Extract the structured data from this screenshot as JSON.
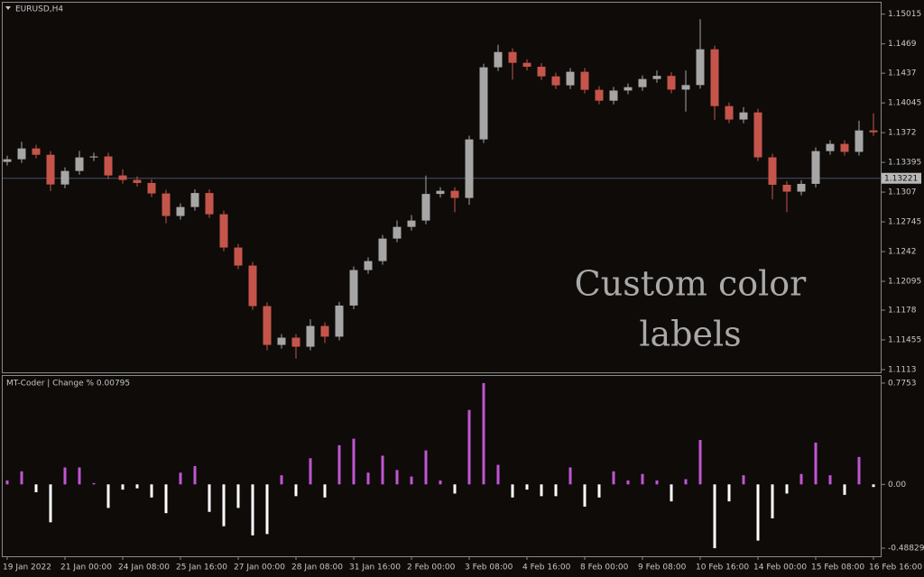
{
  "chart_data": [
    {
      "type": "candlestick",
      "title": "EURUSD,H4",
      "open": [
        1.134,
        1.13429,
        1.13547,
        1.13478,
        1.13153,
        1.13301,
        1.13449,
        1.1346,
        1.13252,
        1.13203,
        1.1317,
        1.13055,
        1.12809,
        1.12907,
        1.1306,
        1.12828,
        1.12464,
        1.12267,
        1.11824,
        1.114,
        1.11479,
        1.1138,
        1.11607,
        1.1149,
        1.1183,
        1.12218,
        1.12316,
        1.12562,
        1.1269,
        1.12759,
        1.1305,
        1.13084,
        1.13006,
        1.13646,
        1.14434,
        1.14601,
        1.14483,
        1.1444,
        1.14335,
        1.14237,
        1.14385,
        1.14188,
        1.14069,
        1.1418,
        1.14217,
        1.14306,
        1.1434,
        1.1419,
        1.1424,
        1.14631,
        1.1401,
        1.13863,
        1.13941,
        1.1345,
        1.1315,
        1.13075,
        1.1316,
        1.13518,
        1.13597,
        1.1351,
        1.13744
      ],
      "high": [
        1.13469,
        1.1362,
        1.13587,
        1.13518,
        1.13341,
        1.1352,
        1.135,
        1.135,
        1.1332,
        1.13243,
        1.1321,
        1.13095,
        1.12947,
        1.131,
        1.131,
        1.12868,
        1.12504,
        1.12307,
        1.11864,
        1.11519,
        1.11519,
        1.1168,
        1.11647,
        1.1187,
        1.12258,
        1.12356,
        1.12602,
        1.1276,
        1.1282,
        1.1325,
        1.13124,
        1.13124,
        1.13686,
        1.14474,
        1.1468,
        1.14641,
        1.14523,
        1.1448,
        1.14375,
        1.14425,
        1.14425,
        1.14228,
        1.1422,
        1.14257,
        1.14346,
        1.144,
        1.1438,
        1.144,
        1.1496,
        1.14671,
        1.1405,
        1.14,
        1.13981,
        1.1349,
        1.1319,
        1.132,
        1.13558,
        1.13637,
        1.13637,
        1.1385,
        1.1393
      ],
      "low": [
        1.1336,
        1.13389,
        1.13438,
        1.1308,
        1.13113,
        1.13261,
        1.13409,
        1.13212,
        1.13163,
        1.1313,
        1.13015,
        1.1273,
        1.12769,
        1.12867,
        1.12788,
        1.12424,
        1.12227,
        1.11784,
        1.1134,
        1.1136,
        1.1125,
        1.1134,
        1.1142,
        1.1145,
        1.1179,
        1.12178,
        1.12276,
        1.12522,
        1.1265,
        1.12719,
        1.1301,
        1.1285,
        1.1293,
        1.13606,
        1.14394,
        1.143,
        1.144,
        1.14295,
        1.14197,
        1.14197,
        1.14148,
        1.14029,
        1.14029,
        1.1414,
        1.14177,
        1.14266,
        1.1415,
        1.1395,
        1.142,
        1.1386,
        1.13823,
        1.13823,
        1.1341,
        1.1299,
        1.1285,
        1.13035,
        1.1312,
        1.13478,
        1.1347,
        1.1347,
        1.13684
      ],
      "close": [
        1.13429,
        1.13547,
        1.13478,
        1.13153,
        1.13301,
        1.13449,
        1.1346,
        1.13252,
        1.13203,
        1.1317,
        1.13055,
        1.12809,
        1.12907,
        1.1306,
        1.12828,
        1.12464,
        1.12267,
        1.11824,
        1.114,
        1.11479,
        1.1138,
        1.11607,
        1.1149,
        1.1183,
        1.12218,
        1.12316,
        1.12562,
        1.1269,
        1.12759,
        1.1305,
        1.13084,
        1.13006,
        1.13646,
        1.14434,
        1.14601,
        1.14483,
        1.1444,
        1.14335,
        1.14237,
        1.14385,
        1.14188,
        1.14069,
        1.1418,
        1.14217,
        1.14306,
        1.1434,
        1.1419,
        1.1424,
        1.14631,
        1.1401,
        1.13863,
        1.13941,
        1.1345,
        1.1315,
        1.13075,
        1.1316,
        1.13518,
        1.13597,
        1.1351,
        1.13744,
        1.13724
      ],
      "up_color": "#a6a6a6",
      "down_color": "#c5554a",
      "ylim": [
        1.111,
        1.1514
      ],
      "yticks": [
        1.15015,
        1.1469,
        1.1437,
        1.14045,
        1.1372,
        1.13395,
        1.1307,
        1.12745,
        1.1242,
        1.12095,
        1.1178,
        1.11455,
        1.1113
      ],
      "price_line": 1.13221,
      "annotation": [
        "Custom color",
        "labels"
      ]
    },
    {
      "type": "bar",
      "title": "MT-Coder | Change % 0.00795",
      "categories": [
        "19 Jan 2022",
        null,
        null,
        null,
        "21 Jan 00:00",
        null,
        null,
        null,
        "24 Jan 08:00",
        null,
        null,
        null,
        "25 Jan 16:00",
        null,
        null,
        null,
        "27 Jan 00:00",
        null,
        null,
        null,
        "28 Jan 08:00",
        null,
        null,
        null,
        "31 Jan 16:00",
        null,
        null,
        null,
        "2 Feb 00:00",
        null,
        null,
        null,
        "3 Feb 08:00",
        null,
        null,
        null,
        "4 Feb 16:00",
        null,
        null,
        null,
        "8 Feb 00:00",
        null,
        null,
        null,
        "9 Feb 08:00",
        null,
        null,
        null,
        "10 Feb 16:00",
        null,
        null,
        null,
        "14 Feb 00:00",
        null,
        null,
        null,
        "15 Feb 08:00",
        null,
        null,
        null,
        "16 Feb 16:00"
      ],
      "values": [
        0.03,
        0.1,
        -0.06,
        -0.29,
        0.13,
        0.13,
        0.01,
        -0.18,
        -0.04,
        -0.03,
        -0.1,
        -0.22,
        0.09,
        0.14,
        -0.21,
        -0.32,
        -0.18,
        -0.39,
        -0.38,
        0.07,
        -0.09,
        0.2,
        -0.1,
        0.3,
        0.35,
        0.09,
        0.22,
        0.11,
        0.06,
        0.26,
        0.03,
        -0.07,
        0.57,
        0.7753,
        0.15,
        -0.1,
        -0.04,
        -0.09,
        -0.09,
        0.13,
        -0.17,
        -0.1,
        0.1,
        0.03,
        0.08,
        0.03,
        -0.13,
        0.04,
        0.34,
        -0.48829,
        -0.13,
        0.07,
        -0.43,
        -0.26,
        -0.07,
        0.08,
        0.32,
        0.07,
        -0.08,
        0.21,
        -0.02
      ],
      "positive_color": "#c155d4",
      "negative_color": "#ffffff",
      "ylim": [
        -0.55,
        0.83
      ],
      "yticks": [
        0.7753,
        {
          "value": 0,
          "label": "0.00"
        },
        -0.48829
      ]
    }
  ]
}
